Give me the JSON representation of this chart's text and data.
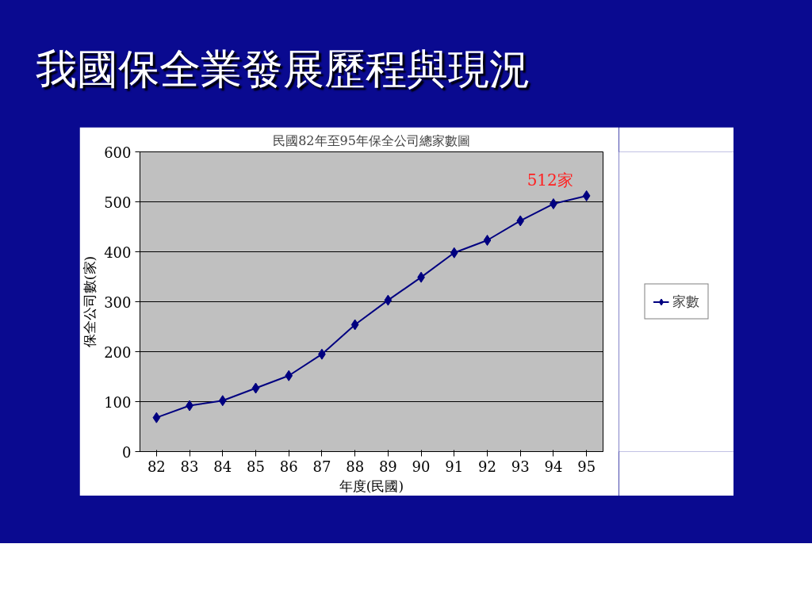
{
  "chart_data": {
    "type": "line",
    "title": "我國保全業發展歷程與現況",
    "subtitle": "民國82年至95年保全公司總家數圖",
    "xlabel": "年度(民國)",
    "ylabel": "保全公司數(家)",
    "categories": [
      "82",
      "83",
      "84",
      "85",
      "86",
      "87",
      "88",
      "89",
      "90",
      "91",
      "92",
      "93",
      "94",
      "95"
    ],
    "series": [
      {
        "name": "家數",
        "color": "#000080",
        "values": [
          68,
          92,
          102,
          127,
          152,
          195,
          254,
          303,
          349,
          398,
          423,
          462,
          496,
          512
        ]
      }
    ],
    "ylim": [
      0,
      600
    ],
    "yticks": [
      0,
      100,
      200,
      300,
      400,
      500,
      600
    ],
    "grid": "y",
    "legend": "right",
    "marker": "diamond",
    "line_style": "solid",
    "annotations": [
      {
        "text": "512家",
        "x": "95",
        "y": 512
      }
    ]
  }
}
